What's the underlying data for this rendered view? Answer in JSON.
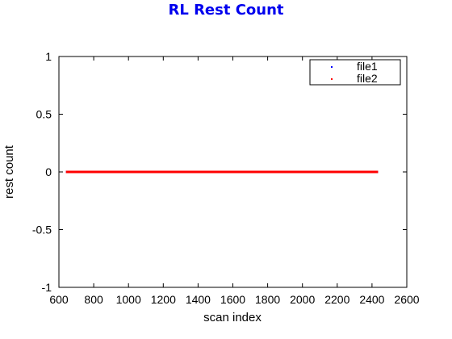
{
  "chart_data": {
    "type": "scatter",
    "title": "RL Rest Count",
    "xlabel": "scan index",
    "ylabel": "rest count",
    "xlim": [
      600,
      2600
    ],
    "ylim": [
      -1,
      1
    ],
    "xticks": [
      600,
      800,
      1000,
      1200,
      1400,
      1600,
      1800,
      2000,
      2200,
      2400,
      2600
    ],
    "yticks": [
      -1,
      -0.5,
      0,
      0.5,
      1
    ],
    "xtick_labels": [
      "600",
      "800",
      "1000",
      "1200",
      "1400",
      "1600",
      "1800",
      "2000",
      "2200",
      "2400",
      "2600"
    ],
    "ytick_labels": [
      "-1",
      "-0.5",
      "0",
      "0.5",
      "1"
    ],
    "grid": false,
    "legend_position": "top-right",
    "series": [
      {
        "name": "file1",
        "color": "#0000ff",
        "x_range": [
          645,
          2430
        ],
        "y": 0
      },
      {
        "name": "file2",
        "color": "#ff0000",
        "x_range": [
          645,
          2430
        ],
        "y": 0
      }
    ]
  }
}
